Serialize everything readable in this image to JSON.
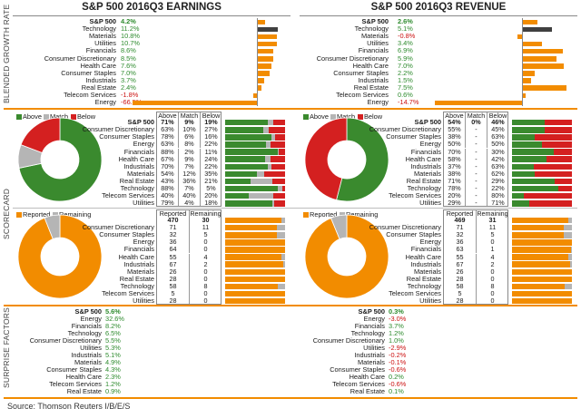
{
  "titles": {
    "earnings": "S&P 500 2016Q3 EARNINGS",
    "revenue": "S&P 500 2016Q3 REVENUE"
  },
  "sections": {
    "growth": "BLENDED GROWTH RATE",
    "scorecard": "SCORECARD",
    "surprise": "SURPRISE FACTORS"
  },
  "source": "Source: Thomson Reuters I/B/E/S",
  "colors": {
    "orange": "#f28c00",
    "green": "#3a8a2e",
    "gray": "#b5b5b5",
    "red": "#d42020",
    "dark": "#404040"
  },
  "chart_data": [
    {
      "type": "bar",
      "title": "S&P 500 2016Q3 EARNINGS - Blended Growth Rate",
      "categories": [
        "S&P 500",
        "Technology",
        "Materials",
        "Utilities",
        "Financials",
        "Consumer Discretionary",
        "Health Care",
        "Consumer Staples",
        "Industrials",
        "Real Estate",
        "Telecom Services",
        "Energy"
      ],
      "labels": [
        "4.2%",
        "11.2%",
        "10.8%",
        "10.7%",
        "8.6%",
        "8.5%",
        "7.6%",
        "7.0%",
        "3.7%",
        "2.4%",
        "-1.8%",
        "-66.5%"
      ],
      "values": [
        4.2,
        11.2,
        10.8,
        10.7,
        8.6,
        8.5,
        7.6,
        7.0,
        3.7,
        2.4,
        -1.8,
        -66.5
      ],
      "highlight": 1
    },
    {
      "type": "bar",
      "title": "S&P 500 2016Q3 REVENUE - Blended Growth Rate",
      "categories": [
        "S&P 500",
        "Technology",
        "Materials",
        "Utilities",
        "Financials",
        "Consumer Discretionary",
        "Health Care",
        "Consumer Staples",
        "Industrials",
        "Real Estate",
        "Telecom Services",
        "Energy"
      ],
      "labels": [
        "2.6%",
        "5.1%",
        "-0.8%",
        "3.4%",
        "6.9%",
        "5.9%",
        "7.0%",
        "2.2%",
        "1.5%",
        "7.5%",
        "0.6%",
        "-14.7%"
      ],
      "values": [
        2.6,
        5.1,
        -0.8,
        3.4,
        6.9,
        5.9,
        7.0,
        2.2,
        1.5,
        7.5,
        0.6,
        -14.7
      ],
      "highlight": 1
    },
    {
      "type": "pie",
      "title": "Earnings Scorecard (S&P 500)",
      "legend": [
        "Above",
        "Match",
        "Below"
      ],
      "values": [
        71,
        9,
        19
      ]
    },
    {
      "type": "table",
      "title": "Earnings Scorecard by Sector",
      "columns": [
        "Above",
        "Match",
        "Below"
      ],
      "categories": [
        "S&P 500",
        "Consumer Discretionary",
        "Consumer Staples",
        "Energy",
        "Financials",
        "Health Care",
        "Industrials",
        "Materials",
        "Real Estate",
        "Technology",
        "Telecom Services",
        "Utilities"
      ],
      "above": [
        "71%",
        "63%",
        "78%",
        "63%",
        "88%",
        "67%",
        "70%",
        "54%",
        "43%",
        "88%",
        "40%",
        "79%"
      ],
      "match": [
        "9%",
        "10%",
        "6%",
        "8%",
        "2%",
        "9%",
        "7%",
        "12%",
        "36%",
        "7%",
        "40%",
        "4%"
      ],
      "below": [
        "19%",
        "27%",
        "16%",
        "22%",
        "11%",
        "24%",
        "22%",
        "35%",
        "21%",
        "5%",
        "20%",
        "18%"
      ],
      "above_v": [
        71,
        63,
        78,
        63,
        88,
        67,
        70,
        54,
        43,
        88,
        40,
        79
      ],
      "match_v": [
        9,
        10,
        6,
        8,
        2,
        9,
        7,
        12,
        36,
        7,
        40,
        4
      ],
      "below_v": [
        19,
        27,
        16,
        22,
        11,
        24,
        22,
        35,
        21,
        5,
        20,
        18
      ]
    },
    {
      "type": "pie",
      "title": "Revenue Scorecard (S&P 500)",
      "legend": [
        "Above",
        "Match",
        "Below"
      ],
      "values": [
        54,
        0,
        46
      ]
    },
    {
      "type": "table",
      "title": "Revenue Scorecard by Sector",
      "columns": [
        "Above",
        "Match",
        "Below"
      ],
      "categories": [
        "S&P 500",
        "Consumer Discretionary",
        "Consumer Staples",
        "Energy",
        "Financials",
        "Health Care",
        "Industrials",
        "Materials",
        "Real Estate",
        "Technology",
        "Telecom Services",
        "Utilities"
      ],
      "above": [
        "54%",
        "55%",
        "38%",
        "50%",
        "70%",
        "58%",
        "37%",
        "38%",
        "71%",
        "78%",
        "20%",
        "29%"
      ],
      "match": [
        "0%",
        "-",
        "-",
        "-",
        "-",
        "-",
        "-",
        "-",
        "-",
        "-",
        "-",
        "-"
      ],
      "below": [
        "46%",
        "45%",
        "63%",
        "50%",
        "30%",
        "42%",
        "63%",
        "62%",
        "29%",
        "22%",
        "80%",
        "71%"
      ],
      "above_v": [
        54,
        55,
        38,
        50,
        70,
        58,
        37,
        38,
        71,
        78,
        20,
        29
      ],
      "match_v": [
        0,
        0,
        0,
        0,
        0,
        0,
        0,
        0,
        0,
        0,
        0,
        0
      ],
      "below_v": [
        46,
        45,
        63,
        50,
        30,
        42,
        63,
        62,
        29,
        22,
        80,
        71
      ]
    },
    {
      "type": "pie",
      "title": "Earnings Reported vs Remaining",
      "legend": [
        "Reported",
        "Remaining"
      ],
      "values": [
        470,
        30
      ]
    },
    {
      "type": "table",
      "title": "Earnings Reported / Remaining by Sector",
      "columns": [
        "Reported",
        "Remaining"
      ],
      "categories": [
        "S&P 500",
        "Consumer Discretionary",
        "Consumer Staples",
        "Energy",
        "Financials",
        "Health Care",
        "Industrials",
        "Materials",
        "Real Estate",
        "Technology",
        "Telecom Services",
        "Utilities"
      ],
      "reported": [
        470,
        71,
        32,
        36,
        64,
        55,
        67,
        26,
        28,
        58,
        5,
        28
      ],
      "remaining": [
        30,
        11,
        5,
        0,
        0,
        4,
        2,
        0,
        0,
        8,
        0,
        0
      ]
    },
    {
      "type": "pie",
      "title": "Revenue Reported vs Remaining",
      "legend": [
        "Reported",
        "Remaining"
      ],
      "values": [
        469,
        31
      ]
    },
    {
      "type": "table",
      "title": "Revenue Reported / Remaining by Sector",
      "columns": [
        "Reported",
        "Remaining"
      ],
      "categories": [
        "S&P 500",
        "Consumer Discretionary",
        "Consumer Staples",
        "Energy",
        "Financials",
        "Health Care",
        "Industrials",
        "Materials",
        "Real Estate",
        "Technology",
        "Telecom Services",
        "Utilities"
      ],
      "reported": [
        469,
        71,
        32,
        36,
        63,
        55,
        67,
        26,
        28,
        58,
        5,
        28
      ],
      "remaining": [
        31,
        11,
        5,
        0,
        1,
        4,
        2,
        0,
        0,
        8,
        0,
        0
      ]
    },
    {
      "type": "table",
      "title": "Earnings Surprise Factors",
      "categories": [
        "S&P 500",
        "Energy",
        "Financials",
        "Technology",
        "Consumer Discretionary",
        "Utilities",
        "Industrials",
        "Materials",
        "Consumer Staples",
        "Health Care",
        "Telecom Services",
        "Real Estate"
      ],
      "labels": [
        "5.6%",
        "32.6%",
        "8.2%",
        "6.5%",
        "5.5%",
        "5.3%",
        "5.1%",
        "4.9%",
        "4.3%",
        "2.3%",
        "1.2%",
        "0.9%"
      ],
      "values": [
        5.6,
        32.6,
        8.2,
        6.5,
        5.5,
        5.3,
        5.1,
        4.9,
        4.3,
        2.3,
        1.2,
        0.9
      ]
    },
    {
      "type": "table",
      "title": "Revenue Surprise Factors",
      "categories": [
        "S&P 500",
        "Energy",
        "Financials",
        "Technology",
        "Consumer Discretionary",
        "Utilities",
        "Industrials",
        "Materials",
        "Consumer Staples",
        "Health Care",
        "Telecom Services",
        "Real Estate"
      ],
      "labels": [
        "0.3%",
        "-3.0%",
        "3.7%",
        "1.2%",
        "1.0%",
        "-2.9%",
        "-0.2%",
        "-0.1%",
        "-0.6%",
        "0.2%",
        "-0.6%",
        "0.1%"
      ],
      "values": [
        0.3,
        -3.0,
        3.7,
        1.2,
        1.0,
        -2.9,
        -0.2,
        -0.1,
        -0.6,
        0.2,
        -0.6,
        0.1
      ]
    }
  ]
}
